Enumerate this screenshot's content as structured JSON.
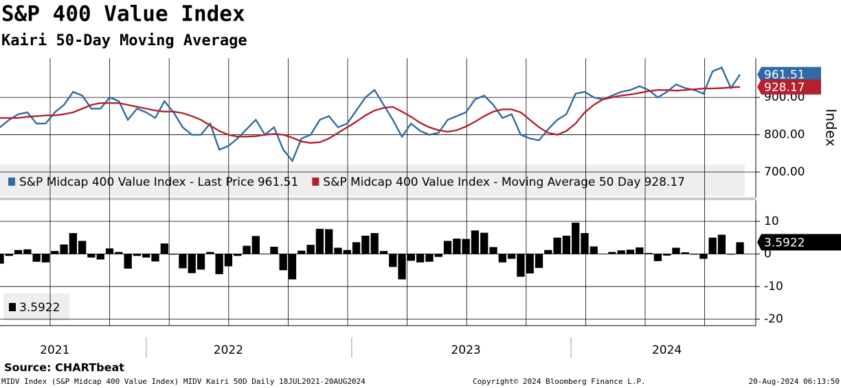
{
  "header": {
    "title": "S&P 400 Value Index",
    "subtitle": "Kairi 50-Day Moving Average"
  },
  "footer": {
    "source": "Source: CHARTbeat",
    "left": "MIDV Index (S&P Midcap 400 Value Index) MIDV Kairi 50D  Daily 18JUL2021-20AUG2024",
    "center": "Copyright© 2024 Bloomberg Finance L.P.",
    "right": "20-Aug-2024 06:13:50"
  },
  "chart_data": [
    {
      "type": "line",
      "y_label": "Index",
      "xlim": [
        0,
        81
      ],
      "xticks": [
        {
          "value": 6,
          "label": "2021"
        },
        {
          "value": 25,
          "label": "2022"
        },
        {
          "value": 51,
          "label": "2023"
        },
        {
          "value": 73,
          "label": "2024"
        }
      ],
      "ylim": [
        632,
        1005
      ],
      "yticks": [
        {
          "value": 700,
          "label": "700.00"
        },
        {
          "value": 800,
          "label": "800.00"
        },
        {
          "value": 900,
          "label": "900.00"
        }
      ],
      "series": [
        {
          "name": "S&P Midcap 400 Value Index - Last Price",
          "color": "#2e6aa6",
          "last_label": "961.51",
          "values": [
            820,
            840,
            855,
            860,
            830,
            830,
            860,
            880,
            915,
            905,
            870,
            870,
            900,
            890,
            840,
            870,
            860,
            845,
            890,
            860,
            820,
            800,
            800,
            830,
            760,
            770,
            790,
            815,
            840,
            800,
            820,
            760,
            730,
            790,
            800,
            840,
            850,
            820,
            830,
            865,
            900,
            920,
            880,
            840,
            795,
            830,
            810,
            800,
            805,
            840,
            850,
            860,
            895,
            905,
            880,
            845,
            855,
            800,
            790,
            785,
            815,
            840,
            855,
            910,
            915,
            900,
            895,
            905,
            915,
            920,
            930,
            920,
            900,
            915,
            935,
            925,
            920,
            910,
            970,
            980,
            925,
            961.51
          ]
        },
        {
          "name": "S&P Midcap 400 Value Index - Moving Average 50 Day",
          "color": "#b5202e",
          "last_label": "928.17",
          "values": [
            845,
            845,
            845,
            848,
            850,
            852,
            852,
            855,
            860,
            870,
            880,
            885,
            885,
            885,
            880,
            875,
            870,
            865,
            862,
            862,
            858,
            850,
            840,
            825,
            810,
            800,
            795,
            795,
            796,
            800,
            802,
            800,
            792,
            782,
            778,
            780,
            790,
            805,
            820,
            835,
            852,
            865,
            872,
            875,
            862,
            848,
            832,
            820,
            812,
            808,
            812,
            822,
            835,
            850,
            862,
            868,
            868,
            860,
            840,
            820,
            805,
            800,
            810,
            830,
            860,
            880,
            895,
            900,
            905,
            908,
            912,
            917,
            920,
            920,
            918,
            920,
            922,
            924,
            924,
            925,
            927,
            928.17
          ]
        }
      ]
    },
    {
      "type": "bar",
      "xlim": [
        0,
        81
      ],
      "color": "#000000",
      "last_label": "3.5922",
      "ylim": [
        -22,
        16.5
      ],
      "yticks": [
        -20,
        -10,
        0,
        10
      ],
      "values": [
        -3.0,
        -0.6,
        1.2,
        1.4,
        -2.4,
        -2.6,
        0.9,
        2.9,
        6.4,
        4.0,
        -1.1,
        -1.7,
        1.7,
        0.6,
        -4.5,
        -0.6,
        -1.1,
        -2.3,
        3.2,
        -0.2,
        -4.4,
        -5.9,
        -4.8,
        0.6,
        -6.2,
        -3.8,
        -0.6,
        2.5,
        5.5,
        0,
        2.2,
        -5.0,
        -7.8,
        1.0,
        2.8,
        7.7,
        7.6,
        1.9,
        1.2,
        3.6,
        5.6,
        6.4,
        0.9,
        -4.0,
        -7.8,
        -2.1,
        -2.6,
        -2.4,
        -0.9,
        4.0,
        4.7,
        4.6,
        7.2,
        6.5,
        2.1,
        -2.6,
        -1.5,
        -7.0,
        -6.0,
        -4.3,
        1.2,
        5.0,
        5.6,
        9.6,
        6.4,
        2.3,
        0,
        0.6,
        1.1,
        1.3,
        2.0,
        0.3,
        -2.2,
        -0.5,
        1.9,
        0.5,
        -0.2,
        -1.5,
        5.0,
        5.9,
        -0.2,
        3.5922
      ]
    }
  ]
}
